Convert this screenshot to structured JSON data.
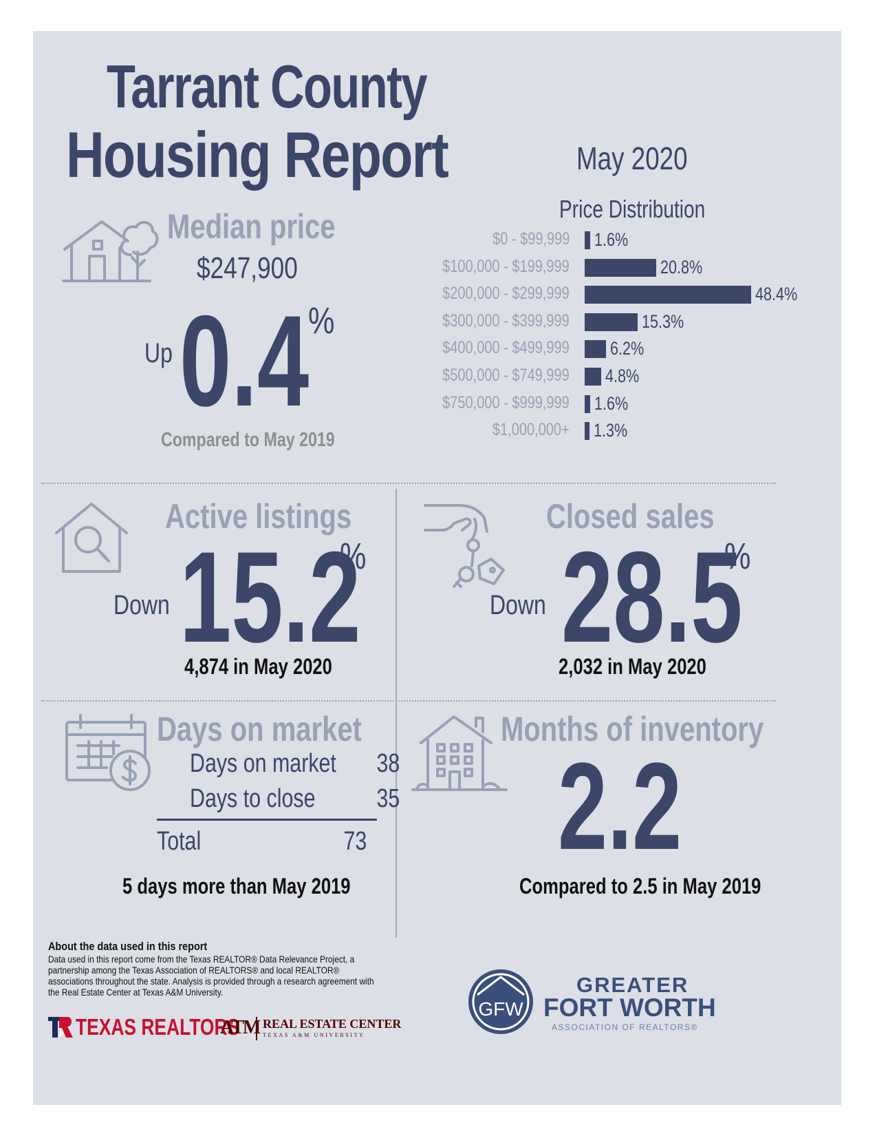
{
  "header": {
    "title_line1": "Tarrant County",
    "title_line2": "Housing Report",
    "period": "May 2020"
  },
  "median_price": {
    "label": "Median price",
    "value": "$247,900",
    "direction": "Up",
    "change": "0.4",
    "unit": "%",
    "comparison": "Compared to May 2019",
    "icon": "house-tree-icon"
  },
  "price_distribution": {
    "title": "Price Distribution"
  },
  "chart_data": {
    "type": "bar",
    "orientation": "horizontal",
    "title": "Price Distribution",
    "categories": [
      "$0 - $99,999",
      "$100,000 - $199,999",
      "$200,000 - $299,999",
      "$300,000 - $399,999",
      "$400,000 - $499,999",
      "$500,000 - $749,999",
      "$750,000 - $999,999",
      "$1,000,000+"
    ],
    "values": [
      1.6,
      20.8,
      48.4,
      15.3,
      6.2,
      4.8,
      1.6,
      1.3
    ],
    "value_labels": [
      "1.6%",
      "20.8%",
      "48.4%",
      "15.3%",
      "6.2%",
      "4.8%",
      "1.6%",
      "1.3%"
    ],
    "xlim": [
      0,
      48.4
    ],
    "bar_color": "#3b4668",
    "grid": false
  },
  "active_listings": {
    "label": "Active listings",
    "direction": "Down",
    "change": "15.2",
    "unit": "%",
    "detail": "4,874 in May 2020",
    "icon": "house-search-icon"
  },
  "closed_sales": {
    "label": "Closed sales",
    "direction": "Down",
    "change": "28.5",
    "unit": "%",
    "detail": "2,032 in May 2020",
    "icon": "hand-keys-icon"
  },
  "days_on_market": {
    "label": "Days on market",
    "rows": [
      {
        "label": "Days on market",
        "value": "38"
      },
      {
        "label": "Days to close",
        "value": "35"
      }
    ],
    "total_label": "Total",
    "total_value": "73",
    "comparison": "5 days more than May 2019",
    "icon": "calendar-dollar-icon"
  },
  "months_inventory": {
    "label": "Months of inventory",
    "value": "2.2",
    "comparison": "Compared to 2.5 in May 2019",
    "icon": "apartment-building-icon"
  },
  "about": {
    "title": "About the data used in this report",
    "body": "Data used in this report come from the Texas REALTOR® Data Relevance Project, a partnership among the Texas Association of REALTORS® and local REALTOR® associations throughout the state. Analysis is provided through a research agreement with the Real Estate Center at Texas A&M University."
  },
  "logos": {
    "texas_realtors": "TEXAS REALTORS",
    "tam": "ATM",
    "rec_line1": "REAL ESTATE CENTER",
    "rec_line2": "TEXAS A&M UNIVERSITY",
    "gfw_monogram": "GFW",
    "gfw_line1": "GREATER",
    "gfw_line2": "FORT WORTH",
    "gfw_line3": "ASSOCIATION OF REALTORS®"
  },
  "colors": {
    "navy": "#3b4668",
    "gray_label": "#98a1b5",
    "panel": "#dcdfe6",
    "gfw_blue": "#3a4f7a",
    "tr_red": "#c8102e",
    "tam_maroon": "#500000"
  }
}
